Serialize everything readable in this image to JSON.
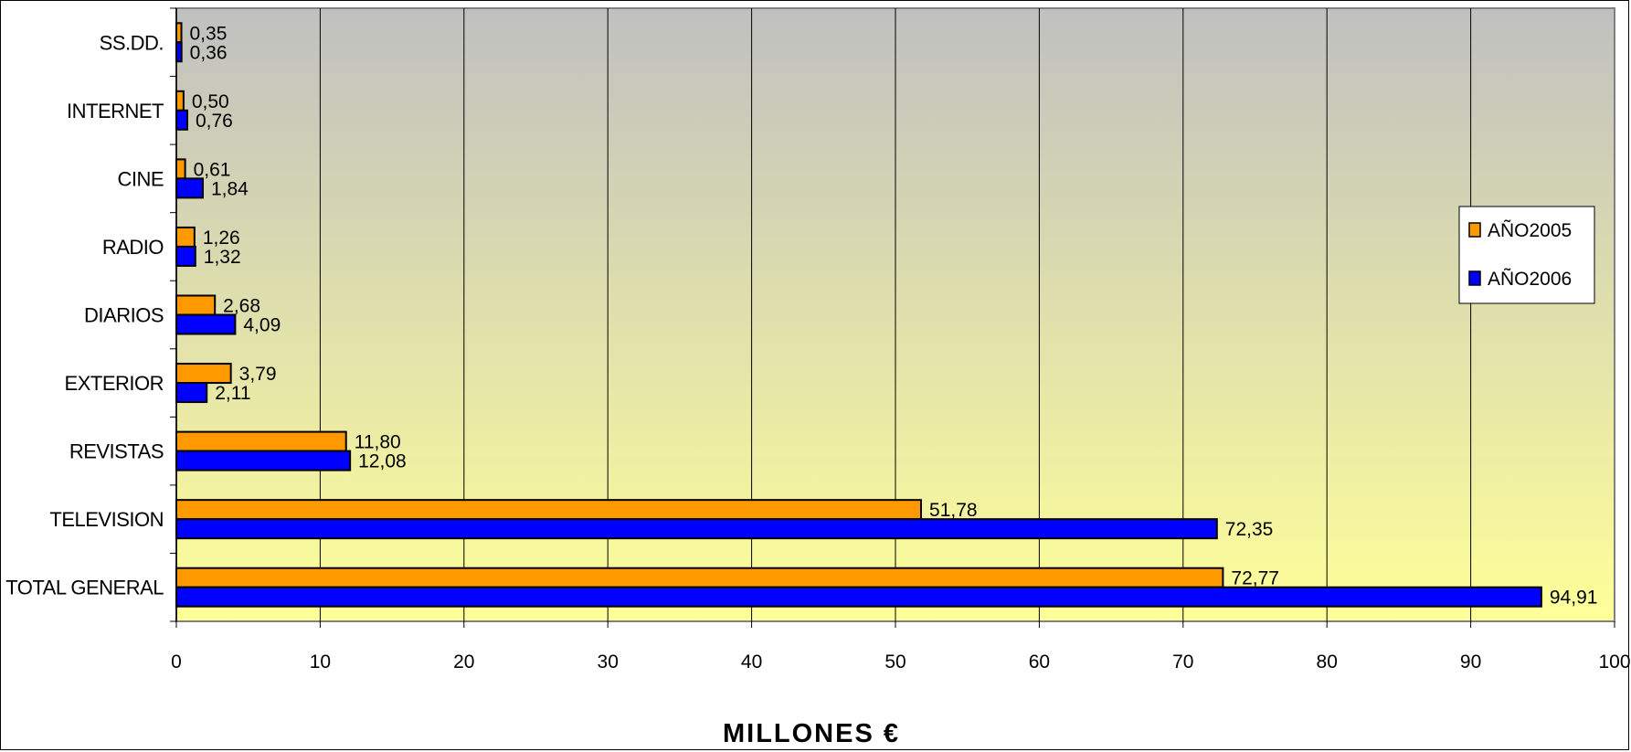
{
  "chart_data": {
    "type": "bar",
    "orientation": "horizontal",
    "categories": [
      "TOTAL GENERAL",
      "TELEVISION",
      "REVISTAS",
      "EXTERIOR",
      "DIARIOS",
      "RADIO",
      "CINE",
      "INTERNET",
      "SS.DD."
    ],
    "series": [
      {
        "name": "AÑO2005",
        "color": "#ff9900",
        "values": [
          72.77,
          51.78,
          11.8,
          3.79,
          2.68,
          1.26,
          0.61,
          0.5,
          0.35
        ],
        "labels": [
          "72,77",
          "51,78",
          "11,80",
          "3,79",
          "2,68",
          "1,26",
          "0,61",
          "0,50",
          "0,35"
        ]
      },
      {
        "name": "AÑO2006",
        "color": "#0000ff",
        "values": [
          94.91,
          72.35,
          12.08,
          2.11,
          4.09,
          1.32,
          1.84,
          0.76,
          0.36
        ],
        "labels": [
          "94,91",
          "72,35",
          "12,08",
          "2,11",
          "4,09",
          "1,32",
          "1,84",
          "0,76",
          "0,36"
        ]
      }
    ],
    "xlabel": "MILLONES €",
    "xlim": [
      0,
      100
    ],
    "xticks": [
      "0",
      "10",
      "20",
      "30",
      "40",
      "50",
      "60",
      "70",
      "80",
      "90",
      "100"
    ],
    "grid": "vertical",
    "legend_position": "right",
    "background_gradient": [
      "#c0c0c0",
      "#ffff99"
    ]
  }
}
